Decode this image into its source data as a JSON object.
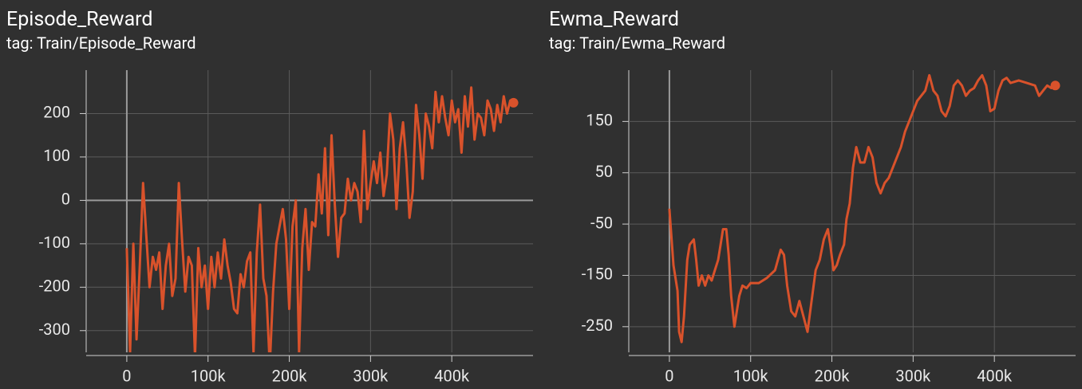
{
  "chart_data": [
    {
      "type": "line",
      "title": "Episode_Reward",
      "subtitle": "tag: Train/Episode_Reward",
      "color": "#d9522b",
      "grid": true,
      "xlim": [
        -50000,
        500000
      ],
      "ylim": [
        -350,
        300
      ],
      "xticks": [
        0,
        {
          "value": 100000,
          "label": "100k"
        },
        {
          "value": 200000,
          "label": "200k"
        },
        {
          "value": 300000,
          "label": "300k"
        },
        {
          "value": 400000,
          "label": "400k"
        }
      ],
      "yticks": [
        -300,
        -200,
        -100,
        0,
        100,
        200
      ],
      "x": [
        0,
        4000,
        8000,
        12000,
        16000,
        20000,
        24000,
        28000,
        32000,
        36000,
        40000,
        44000,
        48000,
        52000,
        56000,
        60000,
        64000,
        68000,
        72000,
        76000,
        80000,
        84000,
        88000,
        92000,
        96000,
        100000,
        104000,
        108000,
        112000,
        116000,
        120000,
        124000,
        128000,
        132000,
        136000,
        140000,
        144000,
        148000,
        152000,
        156000,
        160000,
        164000,
        168000,
        172000,
        176000,
        180000,
        184000,
        188000,
        192000,
        196000,
        200000,
        204000,
        208000,
        212000,
        216000,
        220000,
        224000,
        228000,
        232000,
        236000,
        240000,
        244000,
        248000,
        252000,
        256000,
        260000,
        264000,
        268000,
        272000,
        276000,
        280000,
        284000,
        288000,
        292000,
        296000,
        300000,
        304000,
        308000,
        312000,
        316000,
        320000,
        324000,
        328000,
        332000,
        336000,
        340000,
        344000,
        348000,
        352000,
        356000,
        360000,
        364000,
        368000,
        372000,
        376000,
        380000,
        384000,
        388000,
        392000,
        396000,
        400000,
        404000,
        408000,
        412000,
        416000,
        420000,
        424000,
        428000,
        432000,
        436000,
        440000,
        444000,
        448000,
        452000,
        456000,
        460000,
        464000,
        468000,
        472000,
        476000
      ],
      "values": [
        -110,
        -350,
        -100,
        -320,
        -150,
        40,
        -80,
        -200,
        -130,
        -160,
        -120,
        -250,
        -150,
        -100,
        -220,
        -180,
        40,
        -90,
        -210,
        -130,
        -150,
        -360,
        -110,
        -200,
        -150,
        -250,
        -130,
        -200,
        -120,
        -180,
        -90,
        -150,
        -190,
        -250,
        -260,
        -170,
        -200,
        -140,
        -120,
        -350,
        -120,
        -10,
        -180,
        -220,
        -380,
        -210,
        -100,
        -60,
        -20,
        -90,
        -250,
        -60,
        0,
        -350,
        -110,
        -20,
        -160,
        -50,
        -60,
        60,
        -30,
        120,
        -80,
        150,
        -10,
        -130,
        -40,
        -30,
        50,
        0,
        40,
        20,
        -50,
        160,
        -20,
        40,
        90,
        40,
        110,
        10,
        60,
        200,
        140,
        -20,
        120,
        180,
        90,
        -40,
        20,
        220,
        150,
        50,
        200,
        170,
        120,
        250,
        180,
        240,
        190,
        150,
        230,
        180,
        210,
        110,
        240,
        170,
        260,
        140,
        200,
        190,
        150,
        230,
        210,
        160,
        220,
        180,
        240,
        200,
        230,
        225
      ]
    },
    {
      "type": "line",
      "title": "Ewma_Reward",
      "subtitle": "tag: Train/Ewma_Reward",
      "color": "#d9522b",
      "grid": true,
      "xlim": [
        -50000,
        500000
      ],
      "ylim": [
        -300,
        250
      ],
      "xticks": [
        0,
        {
          "value": 100000,
          "label": "100k"
        },
        {
          "value": 200000,
          "label": "200k"
        },
        {
          "value": 300000,
          "label": "300k"
        },
        {
          "value": 400000,
          "label": "400k"
        }
      ],
      "yticks": [
        -250,
        -150,
        -50,
        50,
        150
      ],
      "x": [
        0,
        5000,
        10000,
        12000,
        15000,
        18000,
        22000,
        25000,
        30000,
        33000,
        36000,
        40000,
        44000,
        48000,
        52000,
        56000,
        60000,
        63000,
        66000,
        70000,
        73000,
        76000,
        80000,
        83000,
        86000,
        90000,
        95000,
        100000,
        110000,
        120000,
        130000,
        137000,
        141000,
        145000,
        150000,
        155000,
        160000,
        165000,
        170000,
        175000,
        180000,
        185000,
        190000,
        195000,
        198000,
        202000,
        206000,
        210000,
        215000,
        218000,
        222000,
        226000,
        230000,
        235000,
        240000,
        245000,
        250000,
        255000,
        260000,
        265000,
        270000,
        275000,
        280000,
        285000,
        290000,
        295000,
        300000,
        305000,
        310000,
        315000,
        320000,
        325000,
        330000,
        335000,
        340000,
        345000,
        350000,
        355000,
        360000,
        365000,
        370000,
        375000,
        380000,
        385000,
        390000,
        395000,
        400000,
        405000,
        410000,
        415000,
        420000,
        430000,
        440000,
        450000,
        455000,
        460000,
        465000,
        470000,
        475000
      ],
      "values": [
        -20,
        -130,
        -180,
        -260,
        -280,
        -230,
        -120,
        -90,
        -80,
        -120,
        -170,
        -150,
        -170,
        -150,
        -160,
        -140,
        -120,
        -90,
        -60,
        -60,
        -110,
        -190,
        -250,
        -220,
        -190,
        -170,
        -175,
        -165,
        -165,
        -155,
        -140,
        -100,
        -110,
        -170,
        -220,
        -230,
        -200,
        -230,
        -260,
        -200,
        -140,
        -120,
        -80,
        -60,
        -90,
        -140,
        -130,
        -110,
        -90,
        -40,
        -10,
        60,
        100,
        70,
        70,
        100,
        80,
        30,
        10,
        30,
        40,
        60,
        80,
        100,
        130,
        150,
        170,
        190,
        200,
        210,
        240,
        210,
        200,
        170,
        160,
        180,
        220,
        230,
        220,
        200,
        210,
        215,
        230,
        240,
        220,
        170,
        175,
        210,
        230,
        235,
        225,
        230,
        225,
        220,
        200,
        210,
        220,
        215,
        220
      ]
    }
  ]
}
